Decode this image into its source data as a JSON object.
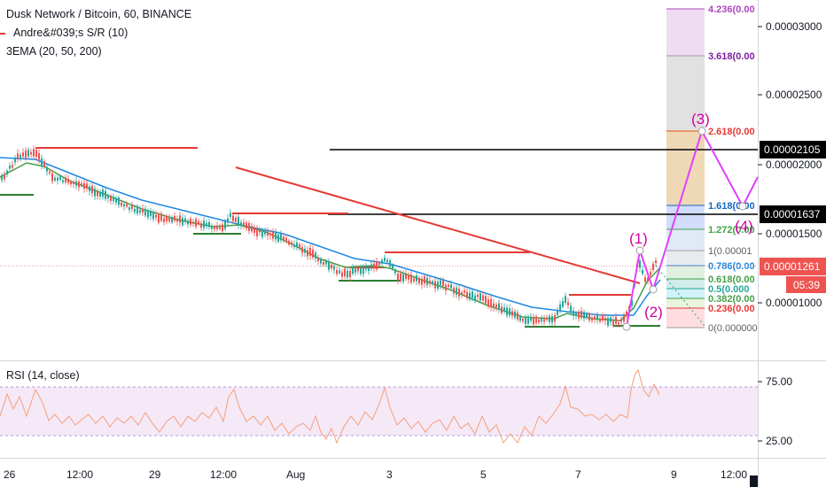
{
  "header": {
    "title": "Dusk Network / Bitcoin, 60, BINANCE",
    "indicator_sr": "Andre&#039;s S/R (10)",
    "indicator_ema": "3EMA (20, 50, 200)"
  },
  "rsi": {
    "label": "RSI (14, close)",
    "ticks": [
      "75.00",
      "25.00"
    ]
  },
  "price_axis": {
    "ticks": [
      "0.00003000",
      "0.00002500",
      "0.00002000",
      "0.00001500",
      "0.00001000"
    ]
  },
  "price_badges": {
    "level_upper": "0.00002105",
    "level_lower": "0.00001637",
    "last_price": "0.00001261",
    "countdown": "05:39"
  },
  "time_axis": {
    "ticks": [
      "26",
      "12:00",
      "29",
      "12:00",
      "Aug",
      "3",
      "5",
      "7",
      "9",
      "12:00"
    ]
  },
  "fibonacci": {
    "labels": [
      "4.236(0.00",
      "3.618(0.00",
      "2.618(0.00",
      "1.618(0.00",
      "1.272(0.00",
      "1(0.00001",
      "0.786(0.00",
      "0.618(0.00",
      "0.5(0.000",
      "0.382(0.00",
      "0.236(0.00",
      "0(0.000000"
    ]
  },
  "waves": {
    "labels": [
      "(1)",
      "(2)",
      "(3)",
      "(4)"
    ]
  },
  "colors": {
    "red": "#e53935",
    "green": "#2e7d32",
    "ema_green": "#43a047",
    "ema_blue": "#1e88e5",
    "magenta": "#e040fb",
    "wave_text": "#d500a0",
    "rsi_line": "#f4a07a",
    "rsi_band": "#e1bee7"
  }
}
